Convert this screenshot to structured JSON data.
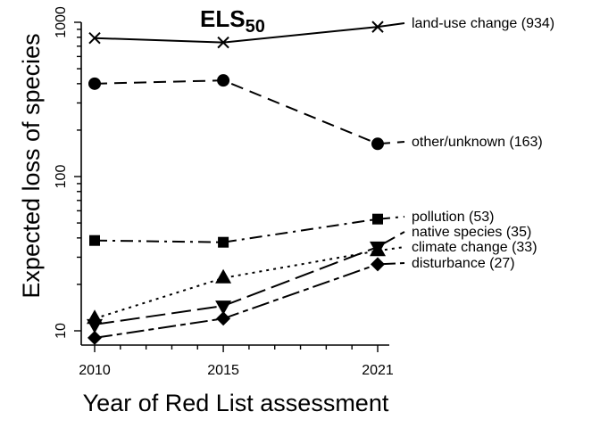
{
  "chart_data": {
    "type": "line",
    "title": "ELS",
    "title_subscript": "50",
    "xlabel": "Year of Red List assessment",
    "ylabel": "Expected loss of species",
    "x": [
      2010,
      2015,
      2021
    ],
    "x_ticks": [
      "2010",
      "2015",
      "2021"
    ],
    "y_scale": "log",
    "ylim": [
      10,
      1000
    ],
    "y_ticks": [
      "10",
      "100",
      "1000"
    ],
    "series": [
      {
        "name": "land-use change",
        "label": "land-use change (934)",
        "values": [
          790,
          740,
          934
        ],
        "marker": "x",
        "dash": "solid"
      },
      {
        "name": "other/unknown",
        "label": "other/unknown (163)",
        "values": [
          400,
          420,
          163
        ],
        "marker": "circle",
        "dash": "dashed"
      },
      {
        "name": "pollution",
        "label": "pollution (53)",
        "values": [
          38.5,
          37.5,
          53
        ],
        "marker": "square",
        "dash": "dashdot"
      },
      {
        "name": "native species",
        "label": "native species (35)",
        "values": [
          11,
          14.5,
          35
        ],
        "marker": "triangle-down",
        "dash": "longdash"
      },
      {
        "name": "climate change",
        "label": "climate change (33)",
        "values": [
          12,
          22,
          33
        ],
        "marker": "triangle-up",
        "dash": "dotted"
      },
      {
        "name": "disturbance",
        "label": "disturbance (27)",
        "values": [
          9,
          12,
          27
        ],
        "marker": "diamond",
        "dash": "twodash"
      }
    ]
  }
}
